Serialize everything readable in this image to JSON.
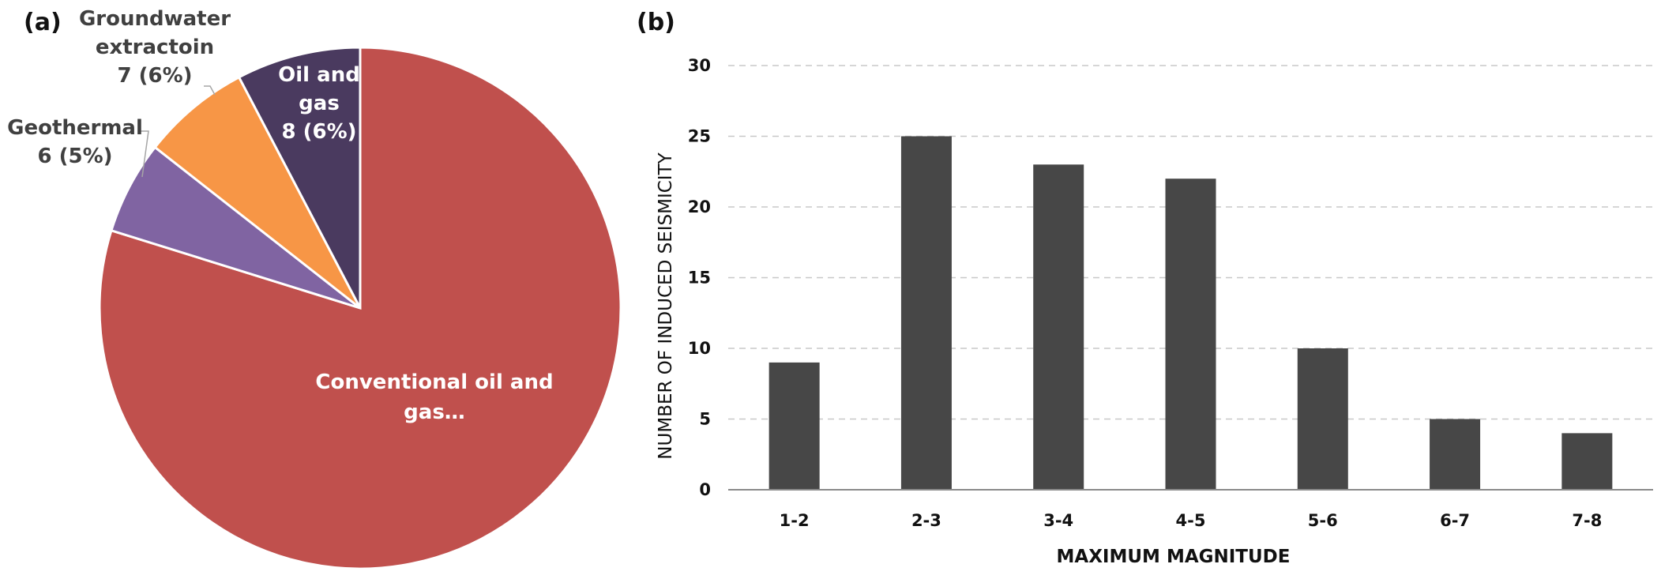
{
  "chart_data": [
    {
      "panel_label": "(a)",
      "type": "pie",
      "slices": [
        {
          "label_lines": [
            "Conventional oil and",
            "gas…"
          ],
          "value": 83,
          "color": "#c0504d"
        },
        {
          "label_lines": [
            "Geothermal",
            "6 (5%)"
          ],
          "value": 6,
          "color": "#8064a2"
        },
        {
          "label_lines": [
            "Groundwater",
            "extractoin",
            "7 (6%)"
          ],
          "value": 7,
          "color": "#f79646"
        },
        {
          "label_lines": [
            "Oil and",
            "gas",
            "8 (6%)"
          ],
          "value": 8,
          "color": "#4a3a5f"
        }
      ],
      "start_angle_deg": 0,
      "direction": "clockwise"
    },
    {
      "panel_label": "(b)",
      "type": "bar",
      "categories": [
        "1-2",
        "2-3",
        "3-4",
        "4-5",
        "5-6",
        "6-7",
        "7-8"
      ],
      "values": [
        9,
        25,
        23,
        22,
        10,
        5,
        4
      ],
      "xlabel": "MAXIMUM MAGNITUDE",
      "ylabel": "NUMBER OF INDUCED SEISMICITY",
      "ylim": [
        0,
        30
      ],
      "yticks": [
        "0",
        "5",
        "10",
        "15",
        "20",
        "25",
        "30"
      ],
      "grid": "horizontal-dashed",
      "bar_color": "#474747"
    }
  ]
}
